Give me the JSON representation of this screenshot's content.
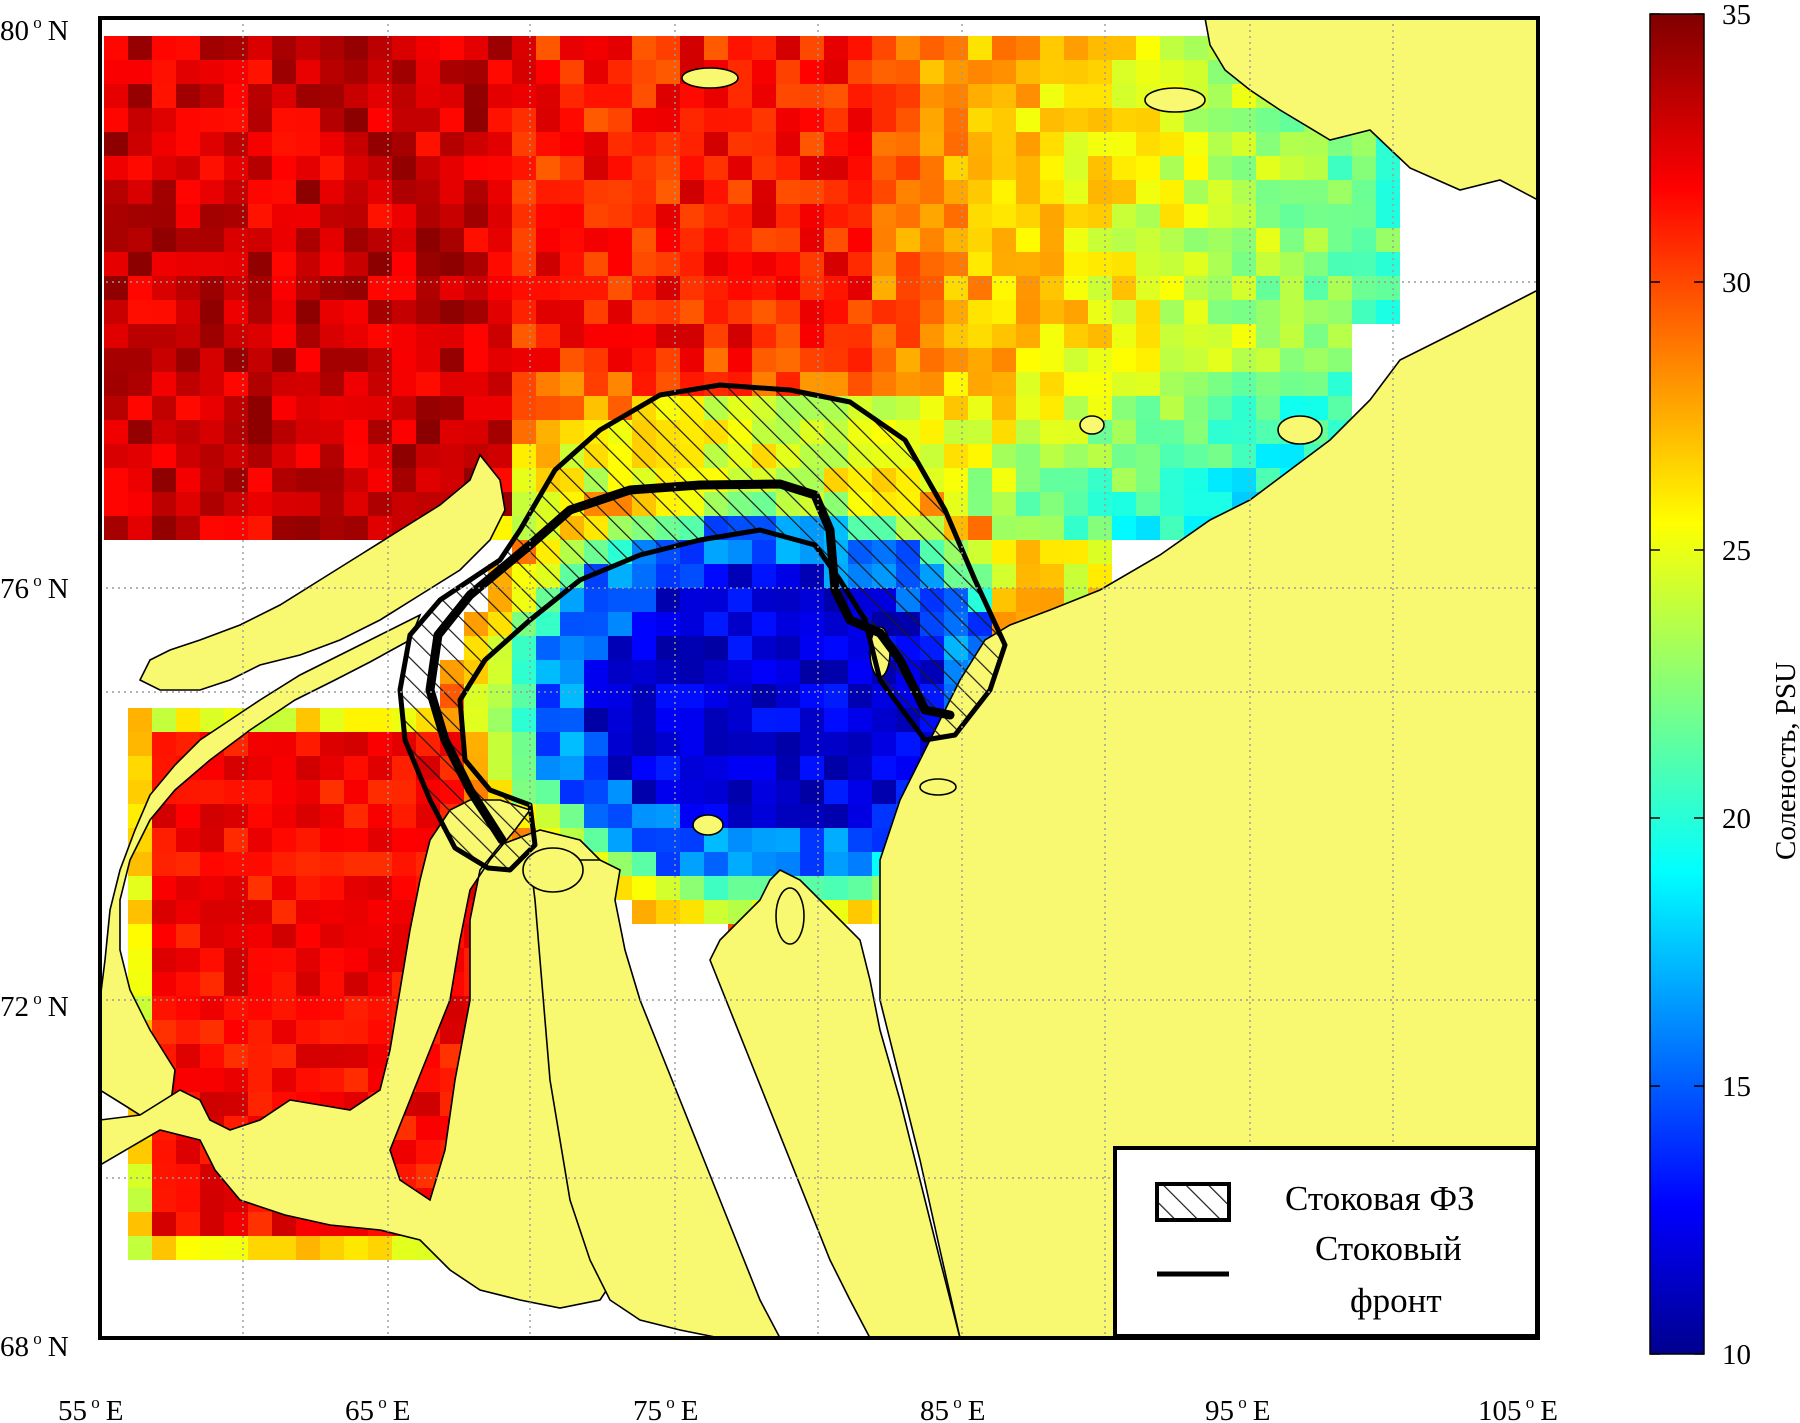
{
  "map": {
    "lat_ticks": [
      {
        "value": "80",
        "suffix": "N"
      },
      {
        "value": "76",
        "suffix": "N"
      },
      {
        "value": "72",
        "suffix": "N"
      },
      {
        "value": "68",
        "suffix": "N"
      }
    ],
    "lon_ticks": [
      {
        "value": "55",
        "suffix": "E"
      },
      {
        "value": "65",
        "suffix": "E"
      },
      {
        "value": "75",
        "suffix": "E"
      },
      {
        "value": "85",
        "suffix": "E"
      },
      {
        "value": "95",
        "suffix": "E"
      },
      {
        "value": "105",
        "suffix": "E"
      }
    ],
    "lat_range": [
      68,
      80
    ],
    "lon_range": [
      55,
      105
    ],
    "land_color": "#f9f871",
    "grid": "dotted"
  },
  "colorbar": {
    "label": "Соленость, PSU",
    "ticks": [
      "35",
      "30",
      "25",
      "20",
      "15",
      "10"
    ],
    "range": [
      10,
      35
    ],
    "colormap": "jet"
  },
  "legend": {
    "items": [
      {
        "label": "Стоковая ФЗ",
        "symbol": "hatched-box"
      },
      {
        "label": "Стоковый",
        "label_2": "фронт",
        "symbol": "thick-line"
      }
    ]
  }
}
